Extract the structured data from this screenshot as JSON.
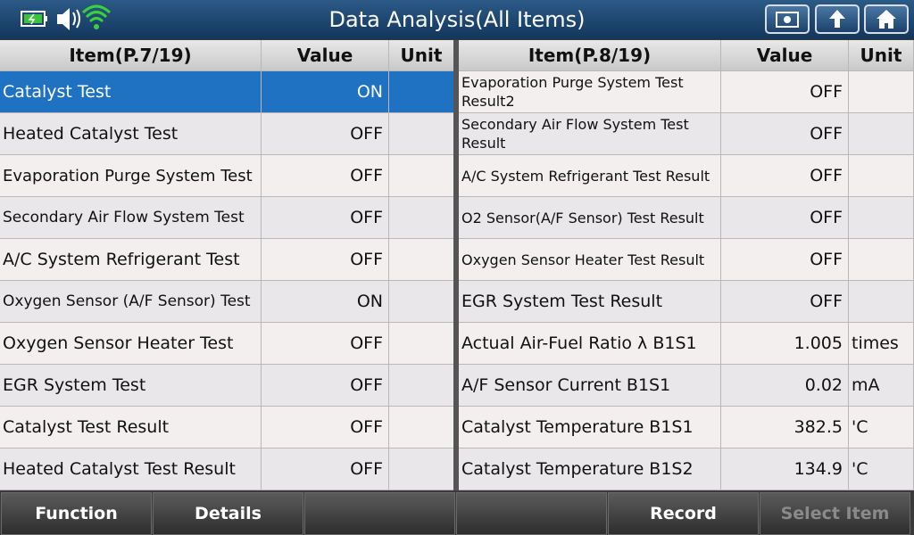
{
  "header": {
    "title": "Data Analysis(All Items)"
  },
  "left_table": {
    "columns": [
      "Item(P.7/19)",
      "Value",
      "Unit"
    ],
    "rows": [
      {
        "item": "Catalyst Test",
        "value": "ON"
      },
      {
        "item": "Heated Catalyst Test",
        "value": "OFF"
      },
      {
        "item": "Evaporation Purge System Test",
        "value": "OFF"
      },
      {
        "item": "Secondary Air Flow System Test",
        "value": "OFF"
      },
      {
        "item": "A/C System Refrigerant Test",
        "value": "OFF"
      },
      {
        "item": "Oxygen Sensor (A/F Sensor) Test",
        "value": "ON"
      },
      {
        "item": "Oxygen Sensor Heater Test",
        "value": "OFF"
      },
      {
        "item": "EGR System Test",
        "value": "OFF"
      },
      {
        "item": "Catalyst Test Result",
        "value": "OFF"
      },
      {
        "item": "Heated Catalyst Test Result",
        "value": "OFF"
      }
    ],
    "selected_row": 0
  },
  "right_table": {
    "columns": [
      "Item(P.8/19)",
      "Value",
      "Unit"
    ],
    "rows": [
      {
        "item": "Evaporation Purge System Test Result2",
        "value": "OFF"
      },
      {
        "item": "Secondary Air Flow System Test Result",
        "value": "OFF"
      },
      {
        "item": "A/C System Refrigerant Test Result",
        "value": "OFF"
      },
      {
        "item": "O2 Sensor(A/F Sensor) Test Result",
        "value": "OFF"
      },
      {
        "item": "Oxygen Sensor Heater Test Result",
        "value": "OFF"
      },
      {
        "item": "EGR System Test Result",
        "value": "OFF"
      },
      {
        "item": "Actual Air-Fuel Ratio λ B1S1",
        "value": "1.005",
        "unit": "times"
      },
      {
        "item": "A/F Sensor Current B1S1",
        "value": "0.02",
        "unit": "mA"
      },
      {
        "item": "Catalyst Temperature B1S1",
        "value": "382.5",
        "unit": "'C"
      },
      {
        "item": "Catalyst Temperature B1S2",
        "value": "134.9",
        "unit": "'C"
      }
    ]
  },
  "footer": {
    "buttons": [
      {
        "label": "Function",
        "enabled": true
      },
      {
        "label": "Details",
        "enabled": true
      },
      {
        "enabled": false
      },
      {
        "enabled": false
      },
      {
        "label": "Record",
        "enabled": true
      },
      {
        "label": "Select Item",
        "enabled": false
      }
    ]
  }
}
